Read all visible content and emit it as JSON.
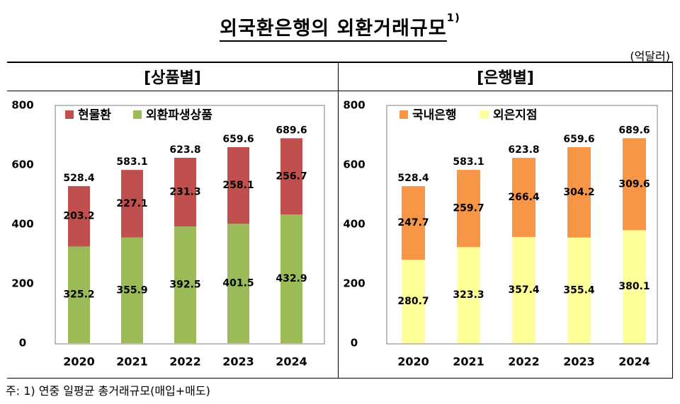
{
  "header": {
    "title": "외국환은행의 외환거래규모",
    "title_sup": "1)",
    "unit": "(억달러)"
  },
  "footnote": "주: 1) 연중 일평균 총거래규모(매입+매도)",
  "colors": {
    "cash": "#c0504d",
    "deriv": "#9bbb59",
    "domestic": "#f79646",
    "foreign": "#ffff99",
    "plot_border": "#7f7f7f"
  },
  "chart_data": [
    {
      "type": "bar",
      "stacked": true,
      "title": "[상품별]",
      "categories": [
        "2020",
        "2021",
        "2022",
        "2023",
        "2024"
      ],
      "series": [
        {
          "name": "외환파생상품",
          "values": [
            325.2,
            355.9,
            392.5,
            401.5,
            432.9
          ],
          "color": "#9bbb59"
        },
        {
          "name": "현물환",
          "values": [
            203.2,
            227.1,
            231.3,
            258.1,
            256.7
          ],
          "color": "#c0504d"
        }
      ],
      "totals": [
        528.4,
        583.1,
        623.8,
        659.6,
        689.6
      ],
      "ylim": [
        0,
        800
      ],
      "yticks": [
        0,
        200,
        400,
        600,
        800
      ],
      "legend": "top-left",
      "grid": false
    },
    {
      "type": "bar",
      "stacked": true,
      "title": "[은행별]",
      "categories": [
        "2020",
        "2021",
        "2022",
        "2023",
        "2024"
      ],
      "series": [
        {
          "name": "외은지점",
          "values": [
            280.7,
            323.3,
            357.4,
            355.4,
            380.1
          ],
          "color": "#ffff99"
        },
        {
          "name": "국내은행",
          "values": [
            247.7,
            259.7,
            266.4,
            304.2,
            309.6
          ],
          "color": "#f79646"
        }
      ],
      "totals": [
        528.4,
        583.1,
        623.8,
        659.6,
        689.6
      ],
      "ylim": [
        0,
        800
      ],
      "yticks": [
        0,
        200,
        400,
        600,
        800
      ],
      "legend": "top-left",
      "grid": false
    }
  ]
}
